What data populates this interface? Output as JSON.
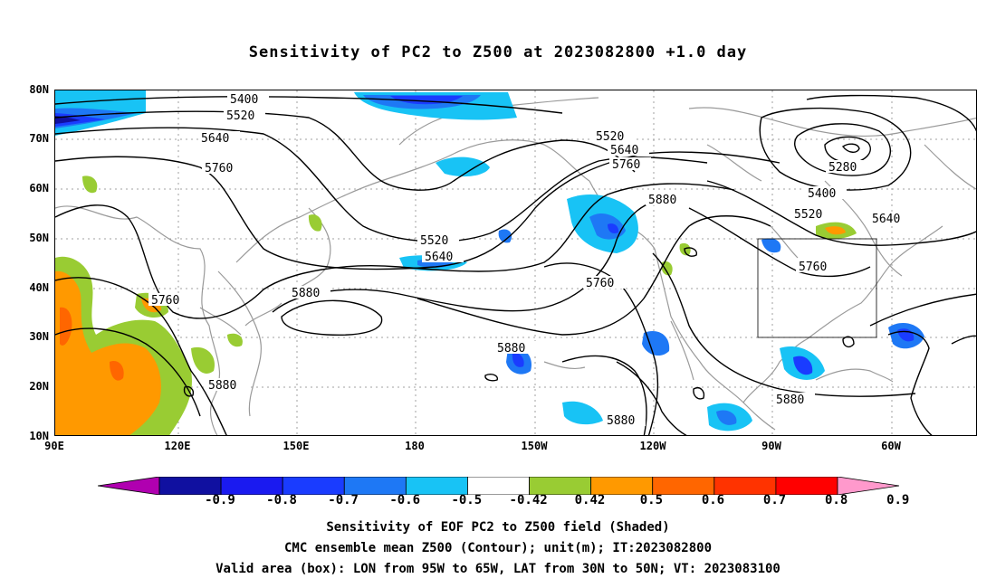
{
  "title": "Sensitivity of PC2 to Z500 at 2023082800 +1.0 day",
  "lat_labels": [
    "80N",
    "70N",
    "60N",
    "50N",
    "40N",
    "30N",
    "20N",
    "10N"
  ],
  "lon_labels": [
    "90E",
    "120E",
    "150E",
    "180",
    "150W",
    "120W",
    "90W",
    "60W"
  ],
  "contour_labels": [
    "5400",
    "5520",
    "5640",
    "5760",
    "5880",
    "5280"
  ],
  "colorbar": {
    "labels": [
      "-0.9",
      "-0.8",
      "-0.7",
      "-0.6",
      "-0.5",
      "-0.42",
      "0.42",
      "0.5",
      "0.6",
      "0.7",
      "0.8",
      "0.9"
    ],
    "colors": [
      "#b000b0",
      "#1010a0",
      "#1a1af0",
      "#1a3cff",
      "#1e78f5",
      "#18c3f5",
      "#ffffff",
      "#99cc33",
      "#ff9900",
      "#ff6600",
      "#ff3300",
      "#ff0000",
      "#ff99cc"
    ]
  },
  "captions": [
    "Sensitivity of EOF PC2 to Z500 field (Shaded)",
    "CMC ensemble mean Z500 (Contour); unit(m); IT:2023082800",
    "Valid area (box): LON from 95W to 65W, LAT from 30N to 50N; VT: 2023083100"
  ],
  "map_data": {
    "lon_range": [
      "90E",
      "45W"
    ],
    "lat_range": [
      "10N",
      "80N"
    ],
    "valid_box": {
      "lon": [
        "95W",
        "65W"
      ],
      "lat": [
        "30N",
        "50N"
      ]
    },
    "grid": "dotted"
  }
}
